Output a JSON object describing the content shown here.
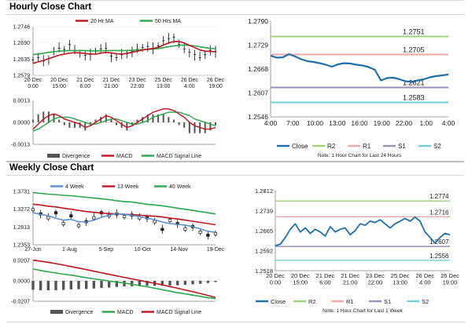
{
  "sections": {
    "hourly_title": "Hourly Close Chart",
    "weekly_title": "Weekly Close Chart"
  },
  "colors": {
    "close": "#1f6fa8",
    "r2": "#9fd37a",
    "r1": "#f0a8a8",
    "s1": "#9d8dbb",
    "s2": "#6fcfd6",
    "ma_red": "#c0141c",
    "ma_green": "#2aa84a",
    "ma_blue": "#5b8fd0",
    "divergence": "#555555"
  },
  "chart_data": [
    {
      "id": "hourly-price",
      "type": "line",
      "title": "Hourly Close Chart",
      "legend": [
        "20 Hr MA",
        "50 Hrs MA"
      ],
      "x_ticks": [
        "20 Dec\n0:00",
        "20 Dec\n15:00",
        "21 Dec\n6:00",
        "21 Dec\n21:00",
        "23 Dec\n22:00",
        "25 Dec\n13:00",
        "26 Dec\n4:00",
        "26 Dec\n19:00"
      ],
      "ylim": [
        1.2579,
        1.2746
      ],
      "y_ticks": [
        "1.2746",
        "1.2690",
        "1.2635",
        "1.2579"
      ],
      "series": [
        {
          "name": "Close",
          "values": [
            1.2632,
            1.264,
            1.2628,
            1.2636,
            1.266,
            1.2672,
            1.2668,
            1.2685,
            1.2663,
            1.2655,
            1.2648,
            1.2651,
            1.2662,
            1.267,
            1.2672,
            1.2645,
            1.264,
            1.265,
            1.2655,
            1.2662,
            1.2668,
            1.2675,
            1.2678,
            1.2672,
            1.268,
            1.2698,
            1.2705,
            1.271,
            1.2685,
            1.267,
            1.2658,
            1.265,
            1.264,
            1.265,
            1.2665,
            1.266
          ]
        },
        {
          "name": "20 Hr MA",
          "values": [
            1.262,
            1.2625,
            1.263,
            1.2636,
            1.2642,
            1.2648,
            1.2652,
            1.2655,
            1.2657,
            1.2656,
            1.2654,
            1.2652,
            1.2652,
            1.2655,
            1.2658,
            1.2656,
            1.2653,
            1.2652,
            1.2654,
            1.2658,
            1.2662,
            1.2666,
            1.2669,
            1.2671,
            1.2675,
            1.2683,
            1.269,
            1.2695,
            1.2695,
            1.269,
            1.2682,
            1.2674,
            1.2666,
            1.2662,
            1.2661,
            1.266
          ]
        },
        {
          "name": "50 Hrs MA",
          "values": [
            1.265,
            1.2652,
            1.2655,
            1.2658,
            1.266,
            1.2662,
            1.2663,
            1.2664,
            1.2664,
            1.2664,
            1.2664,
            1.2663,
            1.2663,
            1.2663,
            1.2664,
            1.2664,
            1.2664,
            1.2664,
            1.2664,
            1.2665,
            1.2666,
            1.2667,
            1.2668,
            1.2669,
            1.2671,
            1.2674,
            1.2677,
            1.268,
            1.2682,
            1.2683,
            1.2682,
            1.268,
            1.2677,
            1.2674,
            1.2672,
            1.267
          ]
        }
      ]
    },
    {
      "id": "hourly-macd",
      "type": "line",
      "legend": [
        "Divergence",
        "MACD",
        "MACD Signal Line"
      ],
      "ylim": [
        -0.0013,
        0.0013
      ],
      "y_ticks": [
        "0.0013",
        "0.0000",
        "-0.0013"
      ],
      "series": [
        {
          "name": "MACD",
          "values": [
            -0.0004,
            -0.0001,
            0.0002,
            0.0004,
            0.0005,
            0.0004,
            0.0002,
            0.0001,
            0.0,
            -0.0001,
            -0.0003,
            -0.0002,
            0.0,
            0.0002,
            0.0004,
            0.0003,
            0.0001,
            -0.0001,
            -0.0003,
            -0.0002,
            0.0,
            0.0002,
            0.0004,
            0.0006,
            0.0007,
            0.0008,
            0.0008,
            0.0007,
            0.0005,
            0.0003,
            0.0,
            -0.0002,
            -0.0003,
            -0.0004,
            -0.0004,
            -0.0003
          ]
        },
        {
          "name": "MACD Signal Line",
          "values": [
            -0.0005,
            -0.0004,
            -0.0002,
            0.0,
            0.0002,
            0.0003,
            0.0003,
            0.0003,
            0.0002,
            0.0001,
            0.0,
            -0.0001,
            -0.0001,
            0.0,
            0.0001,
            0.0002,
            0.0002,
            0.0001,
            0.0,
            -0.0001,
            -0.0001,
            0.0,
            0.0001,
            0.0003,
            0.0004,
            0.0005,
            0.0006,
            0.0006,
            0.0006,
            0.0005,
            0.0004,
            0.0002,
            0.0001,
            0.0,
            -0.0001,
            -0.0002
          ]
        }
      ]
    },
    {
      "id": "hourly-24h",
      "type": "line",
      "note": "Note: 1 Hour Chart for Last 24 Hours",
      "x_ticks": [
        "4:00",
        "7:00",
        "10:00",
        "13:00",
        "16:00",
        "19:00",
        "22:00",
        "1:00",
        "4:00"
      ],
      "ylim": [
        1.2546,
        1.279
      ],
      "y_ticks": [
        "1.2790",
        "1.2729",
        "1.2668",
        "1.2607",
        "1.2546"
      ],
      "levels": {
        "R2": 1.2751,
        "R1": 1.2705,
        "S1": 1.2621,
        "S2": 1.2583
      },
      "level_labels": {
        "R2": "1.2751",
        "R1": "1.2705",
        "S1": "1.2621",
        "S2": "1.2583"
      },
      "legend": [
        "Close",
        "R2",
        "R1",
        "S1",
        "S2"
      ],
      "series": [
        {
          "name": "Close",
          "values": [
            1.2702,
            1.2697,
            1.2698,
            1.2706,
            1.27,
            1.2693,
            1.2688,
            1.2686,
            1.2683,
            1.2679,
            1.2674,
            1.268,
            1.2683,
            1.2682,
            1.2679,
            1.2677,
            1.2673,
            1.2666,
            1.2639,
            1.2645,
            1.2646,
            1.2642,
            1.2637,
            1.2635,
            1.2639,
            1.2642,
            1.2647,
            1.265,
            1.2652,
            1.2654
          ]
        }
      ]
    },
    {
      "id": "weekly-price",
      "type": "line",
      "title": "Weekly Close Chart",
      "legend": [
        "4 Week",
        "13 Week",
        "40 Week"
      ],
      "x_ticks": [
        "27-Jun",
        "1-Aug",
        "5-Sep",
        "10-Oct",
        "14-Nov",
        "19-Dec"
      ],
      "ylim": [
        1.2353,
        1.3731
      ],
      "y_ticks": [
        "1.3731",
        "1.3272",
        "1.2813",
        "1.2353"
      ],
      "series": [
        {
          "name": "Close",
          "values": [
            1.326,
            1.315,
            1.305,
            1.318,
            1.29,
            1.31,
            1.285,
            1.295,
            1.305,
            1.318,
            1.311,
            1.315,
            1.308,
            1.312,
            1.305,
            1.305,
            1.295,
            1.275,
            1.298,
            1.29,
            1.276,
            1.282,
            1.268,
            1.26,
            1.264
          ]
        },
        {
          "name": "4 Week",
          "values": [
            1.318,
            1.314,
            1.31,
            1.304,
            1.299,
            1.301,
            1.295,
            1.294,
            1.299,
            1.306,
            1.312,
            1.316,
            1.314,
            1.311,
            1.308,
            1.304,
            1.3,
            1.294,
            1.29,
            1.288,
            1.286,
            1.282,
            1.276,
            1.27,
            1.268
          ]
        },
        {
          "name": "13 Week",
          "values": [
            1.34,
            1.338,
            1.335,
            1.333,
            1.33,
            1.327,
            1.324,
            1.321,
            1.319,
            1.317,
            1.316,
            1.315,
            1.314,
            1.313,
            1.312,
            1.31,
            1.309,
            1.307,
            1.304,
            1.302,
            1.299,
            1.296,
            1.293,
            1.29,
            1.287
          ]
        },
        {
          "name": "40 Week",
          "values": [
            1.37,
            1.368,
            1.366,
            1.365,
            1.363,
            1.362,
            1.36,
            1.358,
            1.356,
            1.354,
            1.352,
            1.349,
            1.347,
            1.346,
            1.343,
            1.34,
            1.338,
            1.336,
            1.333,
            1.33,
            1.327,
            1.324,
            1.321,
            1.318,
            1.315
          ]
        }
      ]
    },
    {
      "id": "weekly-macd",
      "type": "line",
      "legend": [
        "Divergence",
        "MACD",
        "MACD Signal Line"
      ],
      "ylim": [
        -0.0207,
        0.0207
      ],
      "y_ticks": [
        "0.0207",
        "0.0000",
        "-0.0207"
      ],
      "series": [
        {
          "name": "MACD",
          "values": [
            0.012,
            0.0105,
            0.0092,
            0.008,
            0.0068,
            0.0058,
            0.0045,
            0.0032,
            0.002,
            0.001,
            -0.0002,
            -0.0012,
            -0.0022,
            -0.0035,
            -0.0048,
            -0.006,
            -0.0075,
            -0.009,
            -0.0105,
            -0.012,
            -0.0132,
            -0.0145,
            -0.0158,
            -0.017,
            -0.018
          ]
        },
        {
          "name": "MACD Signal Line",
          "values": [
            0.021,
            0.02,
            0.0188,
            0.0175,
            0.016,
            0.0145,
            0.013,
            0.0115,
            0.0098,
            0.0082,
            0.0066,
            0.005,
            0.0035,
            0.002,
            0.0005,
            -0.001,
            -0.0025,
            -0.004,
            -0.0058,
            -0.0075,
            -0.0092,
            -0.011,
            -0.0128,
            -0.0148,
            -0.0168
          ]
        },
        {
          "name": "Divergence",
          "values": [
            -0.009,
            -0.0095,
            -0.0096,
            -0.0095,
            -0.0092,
            -0.0087,
            -0.0085,
            -0.0083,
            -0.0078,
            -0.0072,
            -0.0068,
            -0.0062,
            -0.0057,
            -0.0055,
            -0.0053,
            -0.005,
            -0.005,
            -0.005,
            -0.0047,
            -0.0045,
            -0.004,
            -0.0035,
            -0.003,
            -0.0022,
            -0.0012
          ]
        }
      ]
    },
    {
      "id": "weekly-1w",
      "type": "line",
      "note": "Note: 1 Hour Chart for Last 1 Week",
      "x_ticks": [
        "20 Dec\n0:00",
        "20 Dec\n15:00",
        "21 Dec\n6:00",
        "21 Dec\n21:00",
        "23 Dec\n22:00",
        "25 Dec\n13:00",
        "26 Dec\n4:00",
        "26 Dec\n19:00"
      ],
      "ylim": [
        1.2518,
        1.2812
      ],
      "y_ticks": [
        "1.2812",
        "1.2739",
        "1.2665",
        "1.2592",
        "1.2518"
      ],
      "levels": {
        "R2": 1.2774,
        "R1": 1.2716,
        "S1": 1.2607,
        "S2": 1.2556
      },
      "level_labels": {
        "R2": "1.2774",
        "R1": "1.2716",
        "S1": "1.2607",
        "S2": "1.2556"
      },
      "legend": [
        "Close",
        "R2",
        "R1",
        "S1",
        "S2"
      ],
      "series": [
        {
          "name": "Close",
          "values": [
            1.261,
            1.2615,
            1.264,
            1.267,
            1.269,
            1.266,
            1.2675,
            1.2655,
            1.267,
            1.266,
            1.2645,
            1.268,
            1.266,
            1.267,
            1.2675,
            1.265,
            1.2665,
            1.269,
            1.2685,
            1.27,
            1.2695,
            1.2705,
            1.269,
            1.2675,
            1.269,
            1.27,
            1.271,
            1.27,
            1.2715,
            1.27,
            1.266,
            1.264,
            1.262,
            1.264,
            1.2655,
            1.265
          ]
        }
      ]
    }
  ]
}
